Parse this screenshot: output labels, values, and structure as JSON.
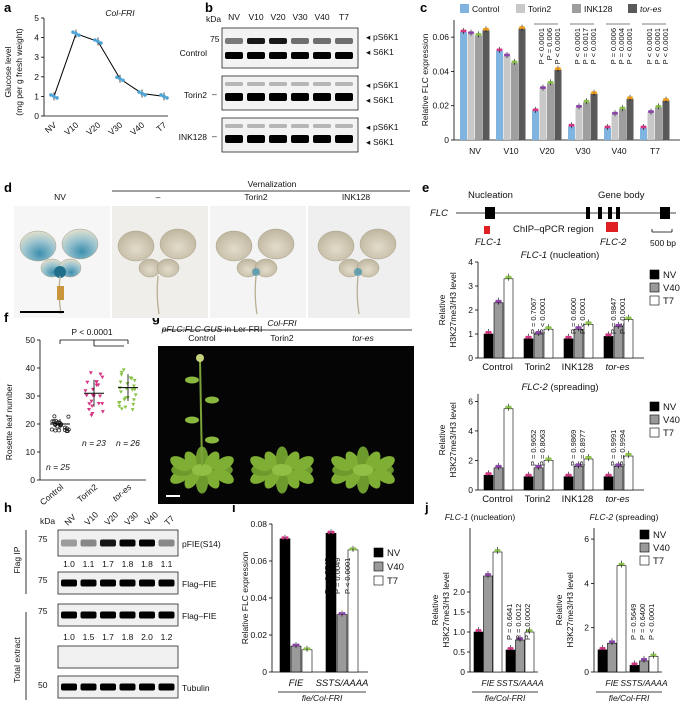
{
  "panel_labels": [
    "a",
    "b",
    "c",
    "d",
    "e",
    "f",
    "g",
    "h",
    "i",
    "j"
  ],
  "colors": {
    "control": "#7fb3e0",
    "torin2": "#c8c8c8",
    "ink128": "#9e9e9e",
    "tores": "#595959",
    "nv": "#000000",
    "v40": "#9a9a9a",
    "t7": "#ffffff",
    "pink": "#d63384",
    "purple": "#8e44ad",
    "green": "#8bc34a",
    "orange": "#f39c12"
  },
  "panel_a": {
    "title": "Col-FRI",
    "ylabel_line1": "Glucose level",
    "ylabel_line2": "(mg per g fresh weight)",
    "yticks": [
      "0",
      "1",
      "2",
      "3",
      "4",
      "5"
    ]
  },
  "panel_b": {
    "kda": "kDa",
    "lanes": [
      "NV",
      "V10",
      "V20",
      "V30",
      "V40",
      "T7"
    ],
    "marker_75": "75",
    "marker_dash": "–",
    "rows": [
      "Control",
      "Torin2",
      "INK128"
    ],
    "band_top": "pS6K1",
    "band_bottom": "S6K1"
  },
  "panel_c": {
    "ylabel": "Relative FLC expression",
    "yticks": [
      "0",
      "0.02",
      "0.04",
      "0.06"
    ],
    "legend": [
      "Control",
      "Torin2",
      "INK128",
      "tor-es"
    ],
    "pvalues": {
      "V20": [
        "P < 0.0001",
        "P = 0.006",
        "P < 0.0001"
      ],
      "V30": [
        "P < 0.0001",
        "P = 0.0017",
        "P < 0.0001"
      ],
      "V40": [
        "P = 0.0006",
        "P = 0.0004",
        "P < 0.0001"
      ],
      "T7": [
        "P < 0.0001",
        "P < 0.0001",
        "P < 0.0001"
      ]
    }
  },
  "panel_d": {
    "heading": "Vernalization",
    "cols": [
      "NV",
      "–",
      "Torin2",
      "INK128"
    ],
    "caption_italic": "pFLC:FLC-GUS",
    "caption_rest": " in Ler-FRI"
  },
  "panel_e": {
    "gene": "FLC",
    "nucleation": "Nucleation",
    "gene_body": "Gene body",
    "region": "ChIP–qPCR region",
    "flc1": "FLC-1",
    "flc2": "FLC-2",
    "scale": "500 bp",
    "ylabel_line1": "Relative",
    "ylabel_line2": "H3K27me3/H3 level",
    "chart1_title": "FLC-1",
    "chart1_sub": " (nucleation)",
    "chart2_title": "FLC-2",
    "chart2_sub": " (spreading)",
    "chart1_yticks": [
      "0",
      "1",
      "2",
      "3",
      "4"
    ],
    "chart2_yticks": [
      "0",
      "2",
      "4",
      "6"
    ],
    "legend": [
      "NV",
      "V40",
      "T7"
    ],
    "pvalues1": {
      "Torin2": [
        "P = 0.7067",
        "P < 0.0001"
      ],
      "INK128": [
        "P = 0.6000",
        "P < 0.0001"
      ],
      "tor-es": [
        "P = 0.9847",
        "P < 0.0001"
      ]
    },
    "pvalues2": {
      "Torin2": [
        "P = 0.9652",
        "P = 0.8063"
      ],
      "INK128": [
        "P = 0.9869",
        "P = 0.8977"
      ],
      "tor-es": [
        "P = 0.9991",
        "P = 0.9994"
      ]
    }
  },
  "panel_f": {
    "ylabel": "Rosette leaf number",
    "yticks": [
      "0",
      "10",
      "20",
      "30",
      "40",
      "50"
    ],
    "pvalue": "P < 0.0001",
    "n_labels": [
      "n = 25",
      "n = 23",
      "n = 26"
    ]
  },
  "panel_g": {
    "heading": "Col-FRI",
    "cols": [
      "Control",
      "Torin2",
      "tor-es"
    ]
  },
  "panel_h": {
    "kda": "kDa",
    "lanes": [
      "NV",
      "V10",
      "V20",
      "V30",
      "V40",
      "T7"
    ],
    "flag_ip": "Flag IP",
    "total_extract": "Total extract",
    "markers": [
      "75",
      "75",
      "75",
      "50"
    ],
    "bands": [
      "pFIE(S14)",
      "Flag–FIE",
      "Flag–FIE",
      "Tubulin"
    ],
    "quant1": [
      "1.0",
      "1.1",
      "1.7",
      "1.8",
      "1.8",
      "1.1"
    ],
    "quant2": [
      "1.0",
      "1.5",
      "1.7",
      "1.8",
      "2.0",
      "1.2"
    ]
  },
  "panel_i": {
    "ylabel": "Relative FLC expression",
    "yticks": [
      "0",
      "0.02",
      "0.04",
      "0.06",
      "0.08"
    ],
    "legend": [
      "NV",
      "V40",
      "T7"
    ],
    "pvalues": [
      "P = 0.5745",
      "P = 0.0049",
      "P < 0.0001"
    ],
    "genotype_line": "fie/Col-FRI"
  },
  "panel_j": {
    "chart1_title": "FLC-1",
    "chart1_sub": " (nucleation)",
    "chart2_title": "FLC-2",
    "chart2_sub": " (spreading)",
    "ylabel_line1": "Relative",
    "ylabel_line2": "H3K27me3/H3 level",
    "chart1_yticks": [
      "0",
      "0.5",
      "1.0",
      "1.5",
      "2.0"
    ],
    "chart2_yticks": [
      "0",
      "2",
      "4",
      "6"
    ],
    "legend": [
      "NV",
      "V40",
      "T7"
    ],
    "pvalues1": [
      "P = 0.6641",
      "P = 0.0012",
      "P = 0.0002"
    ],
    "pvalues2": [
      "P = 0.5649",
      "P = 0.6400",
      "P < 0.0001"
    ],
    "genotype_line": "fie/Col-FRI"
  },
  "chart_data": [
    {
      "type": "line",
      "panel": "a",
      "title": "Col-FRI",
      "categories": [
        "NV",
        "V10",
        "V20",
        "V30",
        "V40",
        "T7"
      ],
      "values": [
        1.0,
        4.2,
        3.8,
        1.9,
        1.15,
        1.0
      ],
      "xlabel": "",
      "ylabel": "Glucose level (mg per g fresh weight)",
      "ylim": [
        0,
        5
      ]
    },
    {
      "type": "bar",
      "panel": "c",
      "categories": [
        "NV",
        "V10",
        "V20",
        "V30",
        "V40",
        "T7"
      ],
      "series": [
        {
          "name": "Control",
          "values": [
            0.063,
            0.052,
            0.017,
            0.008,
            0.007,
            0.007
          ]
        },
        {
          "name": "Torin2",
          "values": [
            0.062,
            0.049,
            0.03,
            0.019,
            0.015,
            0.016
          ]
        },
        {
          "name": "INK128",
          "values": [
            0.061,
            0.045,
            0.033,
            0.022,
            0.018,
            0.019
          ]
        },
        {
          "name": "tor-es",
          "values": [
            0.064,
            0.065,
            0.041,
            0.027,
            0.024,
            0.023
          ]
        }
      ],
      "xlabel": "",
      "ylabel": "Relative FLC expression",
      "ylim": [
        0,
        0.07
      ]
    },
    {
      "type": "scatter",
      "panel": "f",
      "categories": [
        "Control",
        "Torin2",
        "tor-es"
      ],
      "values": [
        20,
        31,
        33
      ],
      "xlabel": "",
      "ylabel": "Rosette leaf number",
      "ylim": [
        0,
        50
      ]
    },
    {
      "type": "bar",
      "panel": "e-FLC-1",
      "categories": [
        "Control",
        "Torin2",
        "INK128",
        "tor-es"
      ],
      "series": [
        {
          "name": "NV",
          "values": [
            1.0,
            0.8,
            0.8,
            0.9
          ]
        },
        {
          "name": "V40",
          "values": [
            2.3,
            1.0,
            1.2,
            1.3
          ]
        },
        {
          "name": "T7",
          "values": [
            3.3,
            1.2,
            1.4,
            1.6
          ]
        }
      ],
      "xlabel": "",
      "ylabel": "Relative H3K27me3/H3 level",
      "ylim": [
        0,
        4
      ]
    },
    {
      "type": "bar",
      "panel": "e-FLC-2",
      "categories": [
        "Control",
        "Torin2",
        "INK128",
        "tor-es"
      ],
      "series": [
        {
          "name": "NV",
          "values": [
            1.0,
            0.9,
            0.9,
            0.9
          ]
        },
        {
          "name": "V40",
          "values": [
            1.5,
            1.5,
            1.6,
            1.6
          ]
        },
        {
          "name": "T7",
          "values": [
            5.5,
            2.0,
            2.1,
            2.3
          ]
        }
      ],
      "xlabel": "",
      "ylabel": "Relative H3K27me3/H3 level",
      "ylim": [
        0,
        6
      ]
    },
    {
      "type": "bar",
      "panel": "i",
      "categories": [
        "FIE",
        "SSTS/AAAA"
      ],
      "series": [
        {
          "name": "NV",
          "values": [
            0.072,
            0.075
          ]
        },
        {
          "name": "V40",
          "values": [
            0.014,
            0.031
          ]
        },
        {
          "name": "T7",
          "values": [
            0.012,
            0.066
          ]
        }
      ],
      "xlabel": "fie/Col-FRI",
      "ylabel": "Relative FLC expression",
      "ylim": [
        0,
        0.08
      ]
    },
    {
      "type": "bar",
      "panel": "j-FLC-1",
      "categories": [
        "FIE",
        "SSTS/AAAA"
      ],
      "series": [
        {
          "name": "NV",
          "values": [
            1.0,
            0.55
          ]
        },
        {
          "name": "V40",
          "values": [
            2.4,
            0.8
          ]
        },
        {
          "name": "T7",
          "values": [
            3.0,
            1.0
          ]
        }
      ],
      "xlabel": "fie/Col-FRI",
      "ylabel": "Relative H3K27me3/H3 level",
      "ylim": [
        0,
        3.6
      ]
    },
    {
      "type": "bar",
      "panel": "j-FLC-2",
      "categories": [
        "FIE",
        "SSTS/AAAA"
      ],
      "series": [
        {
          "name": "NV",
          "values": [
            1.0,
            0.3
          ]
        },
        {
          "name": "V40",
          "values": [
            1.3,
            0.5
          ]
        },
        {
          "name": "T7",
          "values": [
            4.8,
            0.7
          ]
        }
      ],
      "xlabel": "fie/Col-FRI",
      "ylabel": "Relative H3K27me3/H3 level",
      "ylim": [
        0,
        6.5
      ]
    }
  ]
}
